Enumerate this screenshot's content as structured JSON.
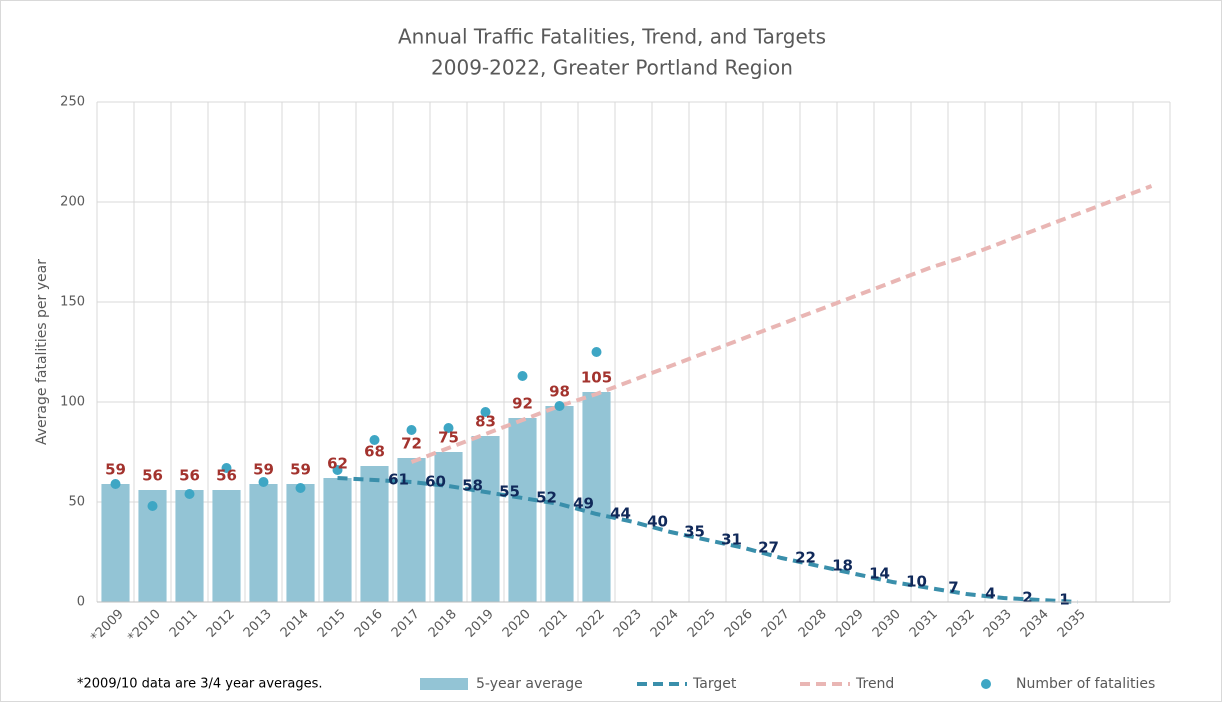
{
  "chart_data": {
    "type": "combo",
    "title": "Annual Traffic Fatalities, Trend, and Targets",
    "subtitle": "2009-2022, Greater Portland Region",
    "y_label": "Average fatalities per year",
    "note": "*2009/10 data are 3/4 year averages.",
    "categories": [
      "*2009",
      "*2010",
      "2011",
      "2012",
      "2013",
      "2014",
      "2015",
      "2016",
      "2017",
      "2018",
      "2019",
      "2020",
      "2021",
      "2022",
      "2023",
      "2024",
      "2025",
      "2026",
      "2027",
      "2028",
      "2029",
      "2030",
      "2031",
      "2032",
      "2033",
      "2034",
      "2035",
      null,
      null
    ],
    "ylim": [
      0,
      250
    ],
    "yticks": [
      0,
      50,
      100,
      150,
      200,
      250
    ],
    "grid": true,
    "series": [
      {
        "name": "5-year average",
        "type": "bar",
        "color": "#93c4d5",
        "label_color": "#a3332e",
        "values": [
          59,
          56,
          56,
          56,
          59,
          59,
          62,
          68,
          72,
          75,
          83,
          92,
          98,
          105,
          null,
          null,
          null,
          null,
          null,
          null,
          null,
          null,
          null,
          null,
          null,
          null,
          null,
          null,
          null
        ]
      },
      {
        "name": "Target",
        "type": "line",
        "color": "#3a8fab",
        "label_color": "#10295a",
        "values": [
          null,
          null,
          null,
          null,
          null,
          null,
          62,
          61,
          60,
          58,
          55,
          52,
          49,
          44,
          40,
          35,
          31,
          27,
          22,
          18,
          14,
          10,
          7,
          4,
          2,
          1,
          0,
          null,
          null
        ],
        "value_labels": [
          null,
          null,
          null,
          null,
          null,
          null,
          null,
          "61",
          "60",
          "58",
          "55",
          "52",
          "49",
          "44",
          "40",
          "35",
          "31",
          "27",
          "22",
          "18",
          "14",
          "10",
          "7",
          "4",
          "2",
          "1",
          null,
          null,
          null
        ]
      },
      {
        "name": "Trend",
        "type": "line",
        "color": "#e9b6b4",
        "values": [
          null,
          null,
          null,
          null,
          null,
          null,
          null,
          null,
          70,
          77,
          84,
          91,
          98,
          104,
          111,
          118,
          125,
          132,
          139,
          146,
          153,
          160,
          167,
          173,
          180,
          187,
          194,
          201,
          208
        ]
      },
      {
        "name": "Number of fatalities",
        "type": "scatter",
        "color": "#3ea6c4",
        "values": [
          59,
          48,
          54,
          67,
          60,
          57,
          66,
          81,
          86,
          87,
          95,
          113,
          98,
          125,
          null,
          null,
          null,
          null,
          null,
          null,
          null,
          null,
          null,
          null,
          null,
          null,
          null,
          null,
          null
        ]
      }
    ]
  }
}
